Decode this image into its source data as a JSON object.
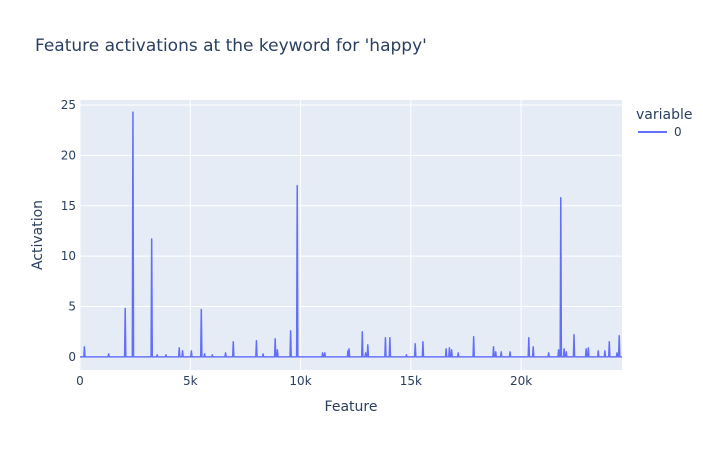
{
  "chart_data": {
    "type": "line",
    "title": "Feature activations at the keyword for 'happy'",
    "xlabel": "Feature",
    "ylabel": "Activation",
    "xlim": [
      0,
      24576
    ],
    "ylim": [
      -1.3,
      25.5
    ],
    "x_ticks": [
      0,
      5000,
      10000,
      15000,
      20000
    ],
    "x_tick_labels": [
      "0",
      "5k",
      "10k",
      "15k",
      "20k"
    ],
    "y_ticks": [
      0,
      5,
      10,
      15,
      20,
      25
    ],
    "y_tick_labels": [
      "0",
      "5",
      "10",
      "15",
      "20",
      "25"
    ],
    "grid": true,
    "legend": {
      "title": "variable",
      "placement": "top-right"
    },
    "series": [
      {
        "name": "0",
        "color": "#636efa",
        "spikes": [
          [
            200,
            1.0
          ],
          [
            1300,
            0.3
          ],
          [
            2050,
            4.8
          ],
          [
            2400,
            24.3
          ],
          [
            3250,
            11.7
          ],
          [
            3500,
            0.2
          ],
          [
            3900,
            0.2
          ],
          [
            4500,
            0.9
          ],
          [
            4650,
            0.6
          ],
          [
            5050,
            0.6
          ],
          [
            5500,
            4.7
          ],
          [
            5650,
            0.3
          ],
          [
            6000,
            0.2
          ],
          [
            6600,
            0.4
          ],
          [
            6950,
            1.5
          ],
          [
            8000,
            1.6
          ],
          [
            8300,
            0.3
          ],
          [
            8850,
            1.8
          ],
          [
            8950,
            0.7
          ],
          [
            9550,
            2.6
          ],
          [
            9850,
            17.0
          ],
          [
            11000,
            0.4
          ],
          [
            11100,
            0.4
          ],
          [
            12150,
            0.6
          ],
          [
            12200,
            0.8
          ],
          [
            12800,
            2.5
          ],
          [
            12950,
            0.4
          ],
          [
            13050,
            1.2
          ],
          [
            13850,
            1.9
          ],
          [
            14050,
            1.9
          ],
          [
            14800,
            0.2
          ],
          [
            15200,
            1.3
          ],
          [
            15550,
            1.5
          ],
          [
            16600,
            0.8
          ],
          [
            16750,
            0.9
          ],
          [
            16850,
            0.7
          ],
          [
            17150,
            0.4
          ],
          [
            17850,
            2.0
          ],
          [
            18750,
            1.0
          ],
          [
            18850,
            0.5
          ],
          [
            19100,
            0.5
          ],
          [
            19500,
            0.5
          ],
          [
            20350,
            1.9
          ],
          [
            20550,
            1.0
          ],
          [
            21250,
            0.4
          ],
          [
            21700,
            0.7
          ],
          [
            21800,
            15.8
          ],
          [
            21950,
            0.8
          ],
          [
            22050,
            0.5
          ],
          [
            22400,
            2.2
          ],
          [
            22950,
            0.8
          ],
          [
            23050,
            0.9
          ],
          [
            23500,
            0.6
          ],
          [
            23800,
            0.6
          ],
          [
            24000,
            1.5
          ],
          [
            24350,
            0.4
          ],
          [
            24450,
            2.1
          ]
        ]
      }
    ]
  }
}
